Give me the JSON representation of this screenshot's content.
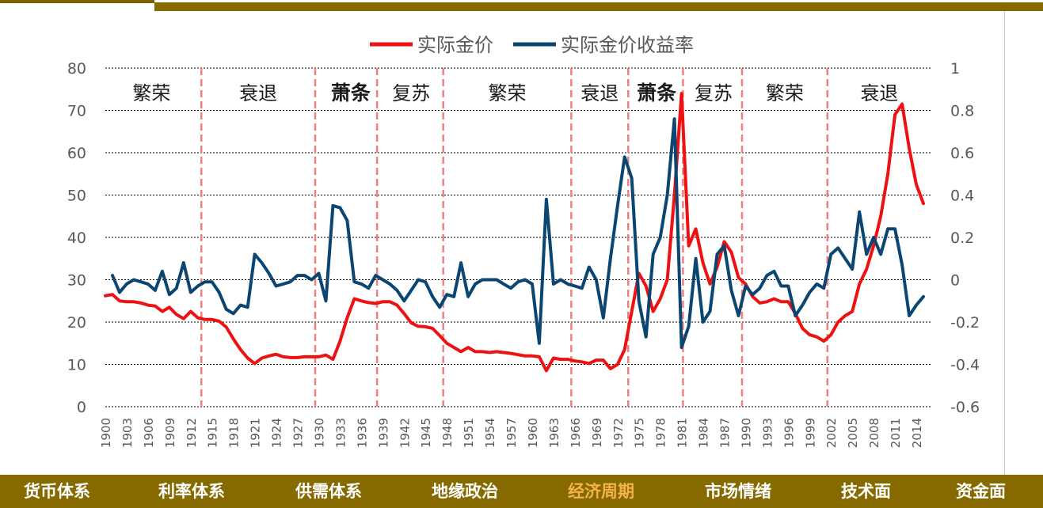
{
  "nav": {
    "items": [
      {
        "label": "货币体系",
        "active": false
      },
      {
        "label": "利率体系",
        "active": false
      },
      {
        "label": "供需体系",
        "active": false
      },
      {
        "label": "地缘政治",
        "active": false
      },
      {
        "label": "经济周期",
        "active": true
      },
      {
        "label": "市场情绪",
        "active": false
      },
      {
        "label": "技术面",
        "active": false
      },
      {
        "label": "资金面",
        "active": false
      }
    ],
    "active_color": "#f3b24a",
    "bar_color": "#866a00"
  },
  "chart_data": {
    "type": "line",
    "title": "",
    "xlabel": "",
    "ylabel_left": "",
    "ylabel_right": "",
    "xlim": [
      1900,
      2016
    ],
    "ylim_left": [
      0,
      80
    ],
    "ylim_right": [
      -0.6,
      1.0
    ],
    "left_ticks": [
      0,
      10,
      20,
      30,
      40,
      50,
      60,
      70,
      80
    ],
    "right_ticks": [
      "-0.6",
      "-0.4",
      "-0.2",
      "0",
      "0.2",
      "0.4",
      "0.6",
      "0.8",
      "1"
    ],
    "x_ticks": [
      1900,
      1903,
      1906,
      1909,
      1912,
      1915,
      1918,
      1921,
      1924,
      1927,
      1930,
      1933,
      1936,
      1939,
      1942,
      1945,
      1948,
      1951,
      1954,
      1957,
      1960,
      1963,
      1966,
      1969,
      1972,
      1975,
      1978,
      1981,
      1984,
      1987,
      1990,
      1993,
      1996,
      1999,
      2002,
      2005,
      2008,
      2011,
      2014
    ],
    "grid": "horizontal-dotted",
    "legend_position": "top-center",
    "series": [
      {
        "name": "实际金价",
        "axis": "left",
        "color": "#ee1111",
        "points": [
          [
            1900,
            26.2
          ],
          [
            1901,
            26.5
          ],
          [
            1902,
            25
          ],
          [
            1903,
            24.8
          ],
          [
            1904,
            24.8
          ],
          [
            1905,
            24.5
          ],
          [
            1906,
            24
          ],
          [
            1907,
            23.8
          ],
          [
            1908,
            22.5
          ],
          [
            1909,
            23.5
          ],
          [
            1910,
            21.8
          ],
          [
            1911,
            20.8
          ],
          [
            1912,
            22.5
          ],
          [
            1913,
            21
          ],
          [
            1914,
            20.6
          ],
          [
            1915,
            20.6
          ],
          [
            1916,
            20.2
          ],
          [
            1917,
            18.8
          ],
          [
            1918,
            16
          ],
          [
            1919,
            13.5
          ],
          [
            1920,
            11.5
          ],
          [
            1921,
            10.2
          ],
          [
            1922,
            11.5
          ],
          [
            1923,
            12
          ],
          [
            1924,
            12.4
          ],
          [
            1925,
            11.8
          ],
          [
            1926,
            11.6
          ],
          [
            1927,
            11.6
          ],
          [
            1928,
            11.8
          ],
          [
            1929,
            11.8
          ],
          [
            1930,
            11.8
          ],
          [
            1931,
            12.2
          ],
          [
            1932,
            11.2
          ],
          [
            1933,
            15.5
          ],
          [
            1934,
            21
          ],
          [
            1935,
            25.5
          ],
          [
            1936,
            25
          ],
          [
            1937,
            24.6
          ],
          [
            1938,
            24.4
          ],
          [
            1939,
            24.8
          ],
          [
            1940,
            24.8
          ],
          [
            1941,
            24
          ],
          [
            1942,
            22
          ],
          [
            1943,
            19.8
          ],
          [
            1944,
            19
          ],
          [
            1945,
            18.9
          ],
          [
            1946,
            18.5
          ],
          [
            1947,
            16.8
          ],
          [
            1948,
            15
          ],
          [
            1949,
            14
          ],
          [
            1950,
            13
          ],
          [
            1951,
            14
          ],
          [
            1952,
            13
          ],
          [
            1953,
            13
          ],
          [
            1954,
            12.8
          ],
          [
            1955,
            13
          ],
          [
            1956,
            12.8
          ],
          [
            1957,
            12.6
          ],
          [
            1958,
            12.3
          ],
          [
            1959,
            12
          ],
          [
            1960,
            12
          ],
          [
            1961,
            11.8
          ],
          [
            1962,
            8.5
          ],
          [
            1963,
            11.5
          ],
          [
            1964,
            11.2
          ],
          [
            1965,
            11.2
          ],
          [
            1966,
            10.8
          ],
          [
            1967,
            10.6
          ],
          [
            1968,
            10.2
          ],
          [
            1969,
            11
          ],
          [
            1970,
            11
          ],
          [
            1971,
            9
          ],
          [
            1972,
            10
          ],
          [
            1973,
            13.5
          ],
          [
            1974,
            22.5
          ],
          [
            1975,
            31.5
          ],
          [
            1976,
            28.5
          ],
          [
            1977,
            22.5
          ],
          [
            1978,
            25.5
          ],
          [
            1979,
            30
          ],
          [
            1980,
            50
          ],
          [
            1981,
            74
          ],
          [
            1982,
            38
          ],
          [
            1983,
            42
          ],
          [
            1984,
            34
          ],
          [
            1985,
            29
          ],
          [
            1986,
            33
          ],
          [
            1987,
            39
          ],
          [
            1988,
            36.5
          ],
          [
            1989,
            30.5
          ],
          [
            1990,
            29
          ],
          [
            1991,
            26
          ],
          [
            1992,
            24.5
          ],
          [
            1993,
            24.8
          ],
          [
            1994,
            25.5
          ],
          [
            1995,
            24.8
          ],
          [
            1996,
            24.8
          ],
          [
            1997,
            22
          ],
          [
            1998,
            18.5
          ],
          [
            1999,
            17
          ],
          [
            2000,
            16.5
          ],
          [
            2001,
            15.5
          ],
          [
            2002,
            17
          ],
          [
            2003,
            20
          ],
          [
            2004,
            21.5
          ],
          [
            2005,
            22.5
          ],
          [
            2006,
            29
          ],
          [
            2007,
            32.5
          ],
          [
            2008,
            38
          ],
          [
            2009,
            45
          ],
          [
            2010,
            55
          ],
          [
            2011,
            69
          ],
          [
            2012,
            71.5
          ],
          [
            2013,
            61
          ],
          [
            2014,
            52.5
          ],
          [
            2015,
            48
          ]
        ]
      },
      {
        "name": "实际金价收益率",
        "axis": "right",
        "color": "#0b4673",
        "points": [
          [
            1901,
            0.02
          ],
          [
            1902,
            -0.06
          ],
          [
            1903,
            -0.02
          ],
          [
            1904,
            0
          ],
          [
            1905,
            -0.01
          ],
          [
            1906,
            -0.02
          ],
          [
            1907,
            -0.05
          ],
          [
            1908,
            0.04
          ],
          [
            1909,
            -0.07
          ],
          [
            1910,
            -0.04
          ],
          [
            1911,
            0.08
          ],
          [
            1912,
            -0.06
          ],
          [
            1913,
            -0.03
          ],
          [
            1914,
            -0.01
          ],
          [
            1915,
            -0.01
          ],
          [
            1916,
            -0.06
          ],
          [
            1917,
            -0.14
          ],
          [
            1918,
            -0.16
          ],
          [
            1919,
            -0.12
          ],
          [
            1920,
            -0.13
          ],
          [
            1921,
            0.12
          ],
          [
            1922,
            0.08
          ],
          [
            1923,
            0.03
          ],
          [
            1924,
            -0.03
          ],
          [
            1925,
            -0.02
          ],
          [
            1926,
            -0.01
          ],
          [
            1927,
            0.02
          ],
          [
            1928,
            0.02
          ],
          [
            1929,
            0
          ],
          [
            1930,
            0.03
          ],
          [
            1931,
            -0.1
          ],
          [
            1932,
            0.35
          ],
          [
            1933,
            0.34
          ],
          [
            1934,
            0.28
          ],
          [
            1935,
            -0.01
          ],
          [
            1936,
            -0.02
          ],
          [
            1937,
            -0.04
          ],
          [
            1938,
            0.02
          ],
          [
            1939,
            0
          ],
          [
            1940,
            -0.02
          ],
          [
            1941,
            -0.05
          ],
          [
            1942,
            -0.1
          ],
          [
            1943,
            -0.05
          ],
          [
            1944,
            0
          ],
          [
            1945,
            -0.01
          ],
          [
            1946,
            -0.08
          ],
          [
            1947,
            -0.13
          ],
          [
            1948,
            -0.07
          ],
          [
            1949,
            -0.08
          ],
          [
            1950,
            0.08
          ],
          [
            1951,
            -0.08
          ],
          [
            1952,
            -0.02
          ],
          [
            1953,
            0
          ],
          [
            1954,
            0
          ],
          [
            1955,
            0
          ],
          [
            1956,
            -0.02
          ],
          [
            1957,
            -0.04
          ],
          [
            1958,
            -0.01
          ],
          [
            1959,
            0
          ],
          [
            1960,
            -0.02
          ],
          [
            1961,
            -0.3
          ],
          [
            1962,
            0.38
          ],
          [
            1963,
            -0.02
          ],
          [
            1964,
            0
          ],
          [
            1965,
            -0.02
          ],
          [
            1966,
            -0.03
          ],
          [
            1967,
            -0.04
          ],
          [
            1968,
            0.06
          ],
          [
            1969,
            0
          ],
          [
            1970,
            -0.18
          ],
          [
            1971,
            0.1
          ],
          [
            1972,
            0.35
          ],
          [
            1973,
            0.58
          ],
          [
            1974,
            0.48
          ],
          [
            1975,
            -0.1
          ],
          [
            1976,
            -0.27
          ],
          [
            1977,
            0.12
          ],
          [
            1978,
            0.2
          ],
          [
            1979,
            0.4
          ],
          [
            1980,
            0.76
          ],
          [
            1981,
            -0.32
          ],
          [
            1982,
            -0.22
          ],
          [
            1983,
            0.1
          ],
          [
            1984,
            -0.2
          ],
          [
            1985,
            -0.15
          ],
          [
            1986,
            0.12
          ],
          [
            1987,
            0.16
          ],
          [
            1988,
            -0.05
          ],
          [
            1989,
            -0.17
          ],
          [
            1990,
            -0.03
          ],
          [
            1991,
            -0.07
          ],
          [
            1992,
            -0.04
          ],
          [
            1993,
            0.02
          ],
          [
            1994,
            0.04
          ],
          [
            1995,
            -0.03
          ],
          [
            1996,
            -0.03
          ],
          [
            1997,
            -0.17
          ],
          [
            1998,
            -0.12
          ],
          [
            1999,
            -0.06
          ],
          [
            2000,
            -0.02
          ],
          [
            2001,
            -0.04
          ],
          [
            2002,
            0.12
          ],
          [
            2003,
            0.15
          ],
          [
            2004,
            0.1
          ],
          [
            2005,
            0.05
          ],
          [
            2006,
            0.32
          ],
          [
            2007,
            0.12
          ],
          [
            2008,
            0.2
          ],
          [
            2009,
            0.12
          ],
          [
            2010,
            0.24
          ],
          [
            2011,
            0.24
          ],
          [
            2012,
            0.07
          ],
          [
            2013,
            -0.17
          ],
          [
            2014,
            -0.12
          ],
          [
            2015,
            -0.08
          ]
        ]
      }
    ],
    "dividers": [
      1913.5,
      1929.5,
      1938.2,
      1947.5,
      1965.5,
      1973.5,
      1981.2,
      1989.5,
      2001.5
    ],
    "phase_labels": [
      {
        "text": "繁荣",
        "x": 1906.5,
        "bold": false
      },
      {
        "text": "衰退",
        "x": 1921.5,
        "bold": false
      },
      {
        "text": "萧条",
        "x": 1934.5,
        "bold": true
      },
      {
        "text": "复苏",
        "x": 1943,
        "bold": false
      },
      {
        "text": "繁荣",
        "x": 1956.5,
        "bold": false
      },
      {
        "text": "衰退",
        "x": 1969.5,
        "bold": false
      },
      {
        "text": "萧条",
        "x": 1977.5,
        "bold": true
      },
      {
        "text": "复苏",
        "x": 1985.5,
        "bold": false
      },
      {
        "text": "繁荣",
        "x": 1995.5,
        "bold": false
      },
      {
        "text": "衰退",
        "x": 2008.8,
        "bold": false
      }
    ],
    "divider_color": "#f08080"
  }
}
